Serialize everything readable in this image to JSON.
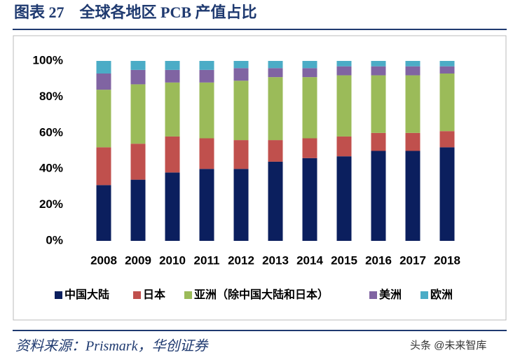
{
  "chart_data": {
    "type": "stacked_bar",
    "title": "图表 27　全球各地区 PCB 产值占比",
    "categories": [
      "2008",
      "2009",
      "2010",
      "2011",
      "2012",
      "2013",
      "2014",
      "2015",
      "2016",
      "2017",
      "2018"
    ],
    "series": [
      {
        "name": "中国大陆",
        "color": "#0b1f5e",
        "values": [
          31,
          34,
          38,
          40,
          40,
          44,
          46,
          47,
          50,
          50,
          52
        ]
      },
      {
        "name": "日本",
        "color": "#c0504d",
        "values": [
          21,
          20,
          20,
          17,
          16,
          12,
          11,
          11,
          10,
          10,
          9
        ]
      },
      {
        "name": "亚洲（除中国大陆和日本）",
        "color": "#9bbb59",
        "values": [
          32,
          33,
          30,
          31,
          33,
          35,
          34,
          34,
          32,
          32,
          32
        ]
      },
      {
        "name": "美洲",
        "color": "#8064a2",
        "values": [
          9,
          8,
          7,
          7,
          7,
          5,
          5,
          5,
          5,
          5,
          4
        ]
      },
      {
        "name": "欧洲",
        "color": "#4bacc6",
        "values": [
          7,
          5,
          5,
          5,
          4,
          4,
          4,
          3,
          3,
          3,
          3
        ]
      }
    ],
    "ylim": [
      0,
      100
    ],
    "yticks": [
      {
        "value": 0,
        "label": "0%"
      },
      {
        "value": 20,
        "label": "20%"
      },
      {
        "value": 40,
        "label": "40%"
      },
      {
        "value": 60,
        "label": "60%"
      },
      {
        "value": 80,
        "label": "80%"
      },
      {
        "value": 100,
        "label": "100%"
      }
    ]
  },
  "footer": {
    "source": "资料来源：Prismark，华创证券",
    "watermark": "头条 @未来智库"
  }
}
